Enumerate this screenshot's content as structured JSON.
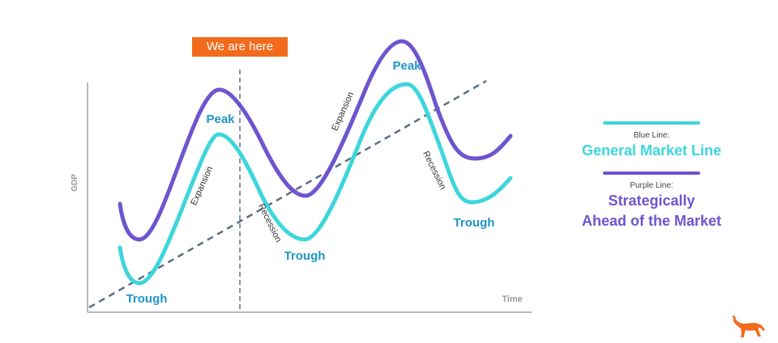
{
  "badge_label": "We are here",
  "axes": {
    "y_label": "GDP",
    "x_label": "Time"
  },
  "curve_labels": {
    "peak_1": "Peak",
    "peak_2": "Peak",
    "trough_1": "Trough",
    "trough_2": "Trough",
    "trough_3": "Trough",
    "expansion_1": "Expansion",
    "expansion_2": "Expansion",
    "recession_1": "Recession",
    "recession_2": "Recession"
  },
  "legend": {
    "blue_caption": "Blue Line:",
    "blue_name": "General Market Line",
    "purple_caption": "Purple Line:",
    "purple_name_line1": "Strategically",
    "purple_name_line2": "Ahead of the Market"
  },
  "colors": {
    "blue_line": "#3dd6dc",
    "purple_line": "#6e55cf",
    "label_blue": "#1e95c8",
    "trend_line": "#5a6e85",
    "badge": "#f26b1d",
    "logo": "#f26b1d"
  },
  "icons": {
    "brand_logo": "bull-icon"
  }
}
